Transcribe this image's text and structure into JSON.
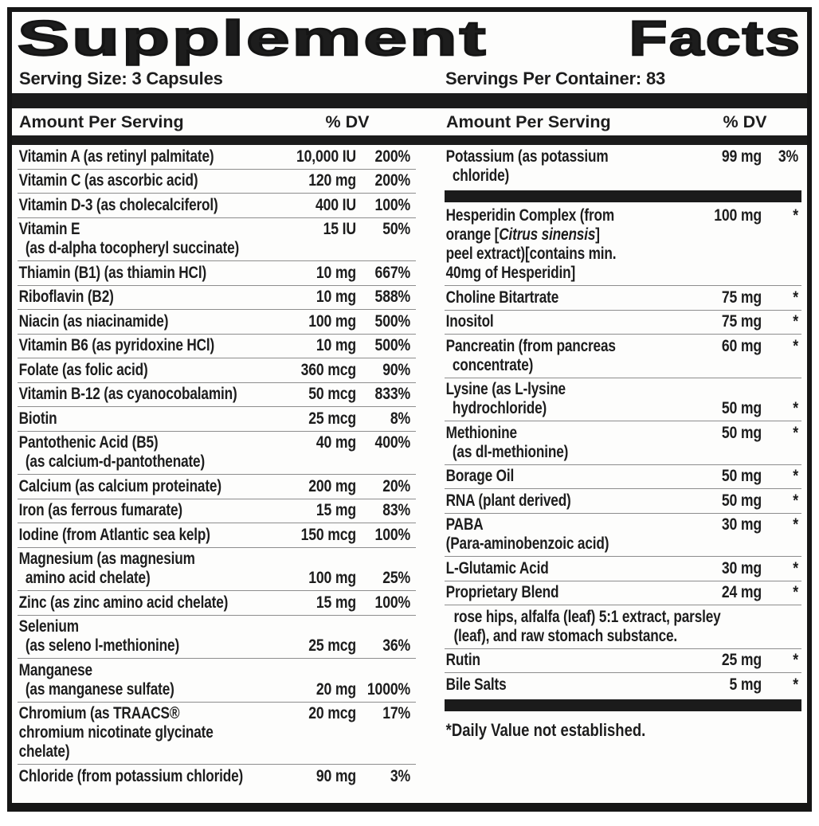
{
  "title": {
    "word1": "Supplement",
    "word2": "Facts"
  },
  "serving": {
    "size": "Serving Size: 3 Capsules",
    "per_container": "Servings Per Container: 83"
  },
  "table": {
    "header": {
      "amount_label": "Amount Per Serving",
      "dv_label": "% DV"
    },
    "left_rows": [
      {
        "lines": [
          {
            "text": "Vitamin A (as retinyl palmitate)",
            "amount": "10,000 IU",
            "dv": "200%"
          }
        ]
      },
      {
        "lines": [
          {
            "text": "Vitamin C (as ascorbic acid)",
            "amount": "120 mg",
            "dv": "200%"
          }
        ]
      },
      {
        "lines": [
          {
            "text": "Vitamin D-3 (as cholecalciferol)",
            "amount": "400 IU",
            "dv": "100%"
          }
        ]
      },
      {
        "lines": [
          {
            "text": "Vitamin E",
            "amount": "15 IU",
            "dv": "50%"
          },
          {
            "text": "(as d-alpha tocopheryl succinate)",
            "indent": true
          }
        ]
      },
      {
        "lines": [
          {
            "text": "Thiamin (B1) (as thiamin HCl)",
            "amount": "10 mg",
            "dv": "667%"
          }
        ]
      },
      {
        "lines": [
          {
            "text": "Riboflavin (B2)",
            "amount": "10 mg",
            "dv": "588%"
          }
        ]
      },
      {
        "lines": [
          {
            "text": "Niacin (as niacinamide)",
            "amount": "100 mg",
            "dv": "500%"
          }
        ]
      },
      {
        "lines": [
          {
            "text": "Vitamin B6 (as pyridoxine HCl)",
            "amount": "10 mg",
            "dv": "500%"
          }
        ]
      },
      {
        "lines": [
          {
            "text": "Folate (as folic acid)",
            "amount": "360 mcg",
            "dv": "90%"
          }
        ]
      },
      {
        "lines": [
          {
            "text": "Vitamin B-12 (as cyanocobalamin)",
            "amount": "50 mcg",
            "dv": "833%"
          }
        ]
      },
      {
        "lines": [
          {
            "text": "Biotin",
            "amount": "25 mcg",
            "dv": "8%"
          }
        ]
      },
      {
        "lines": [
          {
            "text": "Pantothenic Acid (B5)",
            "amount": "40 mg",
            "dv": "400%"
          },
          {
            "text": "(as calcium-d-pantothenate)",
            "indent": true
          }
        ]
      },
      {
        "lines": [
          {
            "text": "Calcium (as calcium proteinate)",
            "amount": "200 mg",
            "dv": "20%"
          }
        ]
      },
      {
        "lines": [
          {
            "text": "Iron (as ferrous fumarate)",
            "amount": "15 mg",
            "dv": "83%"
          }
        ]
      },
      {
        "lines": [
          {
            "text": "Iodine (from Atlantic sea kelp)",
            "amount": "150 mcg",
            "dv": "100%"
          }
        ]
      },
      {
        "lines": [
          {
            "text": "Magnesium (as magnesium"
          },
          {
            "text": "amino acid chelate)",
            "indent": true,
            "amount": "100 mg",
            "dv": "25%"
          }
        ]
      },
      {
        "lines": [
          {
            "text": "Zinc (as zinc amino acid chelate)",
            "amount": "15 mg",
            "dv": "100%"
          }
        ]
      },
      {
        "lines": [
          {
            "text": "Selenium"
          },
          {
            "text": "(as seleno l-methionine)",
            "indent": true,
            "amount": "25 mcg",
            "dv": "36%"
          }
        ]
      },
      {
        "lines": [
          {
            "text": "Manganese"
          },
          {
            "text": "(as manganese sulfate)",
            "indent": true,
            "amount": "20 mg",
            "dv": "1000%"
          }
        ]
      },
      {
        "lines": [
          {
            "text": "Chromium (as TRAACS®",
            "amount": "20 mcg",
            "dv": "17%"
          },
          {
            "text": "chromium nicotinate glycinate"
          },
          {
            "text": "chelate)"
          }
        ]
      },
      {
        "lines": [
          {
            "text": "Chloride (from potassium chloride)",
            "amount": "90 mg",
            "dv": "3%"
          }
        ]
      }
    ],
    "right_rows": [
      {
        "lines": [
          {
            "text": "Potassium (as potassium",
            "amount": "99 mg",
            "dv": "3%"
          },
          {
            "text": "chloride)",
            "indent": true
          }
        ]
      },
      {
        "type": "bar"
      },
      {
        "lines": [
          {
            "text": "Hesperidin Complex (from",
            "amount": "100 mg",
            "dv": "*"
          },
          {
            "segments": [
              {
                "text": "orange ["
              },
              {
                "text": "Citrus sinensis",
                "italic": true
              },
              {
                "text": "]"
              }
            ]
          },
          {
            "text": "peel extract)[contains min."
          },
          {
            "text": "40mg of Hesperidin]"
          }
        ]
      },
      {
        "lines": [
          {
            "text": "Choline Bitartrate",
            "amount": "75 mg",
            "dv": "*"
          }
        ]
      },
      {
        "lines": [
          {
            "text": "Inositol",
            "amount": "75 mg",
            "dv": "*"
          }
        ]
      },
      {
        "lines": [
          {
            "text": "Pancreatin (from pancreas",
            "amount": "60 mg",
            "dv": "*"
          },
          {
            "text": "concentrate)",
            "indent": true
          }
        ]
      },
      {
        "lines": [
          {
            "text": "Lysine (as L-lysine"
          },
          {
            "text": "hydrochloride)",
            "indent": true,
            "amount": "50 mg",
            "dv": "*"
          }
        ]
      },
      {
        "lines": [
          {
            "text": "Methionine",
            "amount": "50 mg",
            "dv": "*"
          },
          {
            "text": "(as dl-methionine)",
            "indent": true
          }
        ]
      },
      {
        "lines": [
          {
            "text": "Borage Oil",
            "amount": "50 mg",
            "dv": "*"
          }
        ]
      },
      {
        "lines": [
          {
            "text": "RNA (plant derived)",
            "amount": "50 mg",
            "dv": "*"
          }
        ]
      },
      {
        "lines": [
          {
            "text": "PABA",
            "amount": "30 mg",
            "dv": "*"
          },
          {
            "text": "(Para-aminobenzoic acid)"
          }
        ]
      },
      {
        "lines": [
          {
            "text": "L-Glutamic Acid",
            "amount": "30 mg",
            "dv": "*"
          }
        ]
      },
      {
        "lines": [
          {
            "text": "Proprietary Blend",
            "amount": "24 mg",
            "dv": "*"
          }
        ]
      },
      {
        "type": "note",
        "lines": [
          {
            "text": "rose hips, alfalfa (leaf) 5:1 extract, parsley"
          },
          {
            "text": "(leaf), and raw stomach substance."
          }
        ]
      },
      {
        "lines": [
          {
            "text": "Rutin",
            "amount": "25 mg",
            "dv": "*"
          }
        ]
      },
      {
        "lines": [
          {
            "text": "Bile Salts",
            "amount": "5 mg",
            "dv": "*"
          }
        ]
      },
      {
        "type": "bar"
      },
      {
        "type": "footnote",
        "text": "*Daily Value not established."
      }
    ]
  }
}
